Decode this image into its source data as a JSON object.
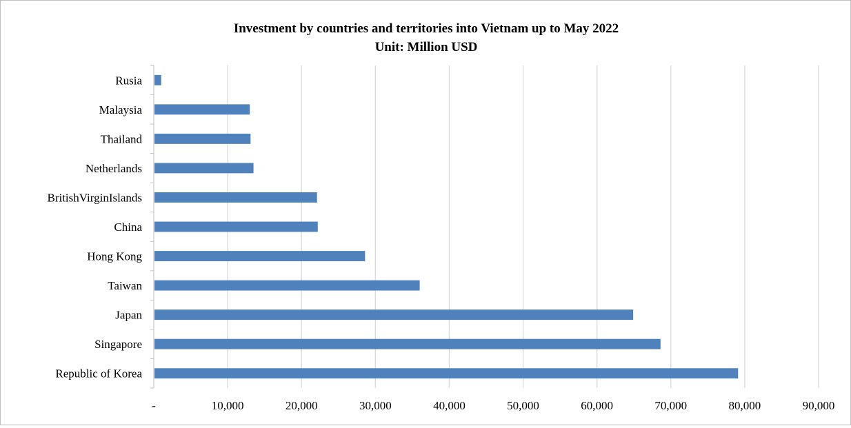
{
  "chart_data": {
    "type": "bar",
    "orientation": "horizontal",
    "title": "Investment by countries and territories into Vietnam up to May 2022",
    "subtitle": "Unit: Million USD",
    "categories": [
      "Rusia",
      "Malaysia",
      "Thailand",
      "Netherlands",
      "BritishVirginIslands",
      "China",
      "Hong Kong",
      "Taiwan",
      "Japan",
      "Singapore",
      "Republic of Korea"
    ],
    "values": [
      1000,
      13000,
      13100,
      13500,
      22100,
      22200,
      28600,
      36000,
      64900,
      68600,
      79100
    ],
    "x_tick_labels": [
      "-",
      "10,000",
      "20,000",
      "30,000",
      "40,000",
      "50,000",
      "60,000",
      "70,000",
      "80,000",
      "90,000"
    ],
    "xlim": [
      0,
      90000
    ],
    "grid": true,
    "bar_color": "#4f81bd",
    "legend": "none"
  }
}
